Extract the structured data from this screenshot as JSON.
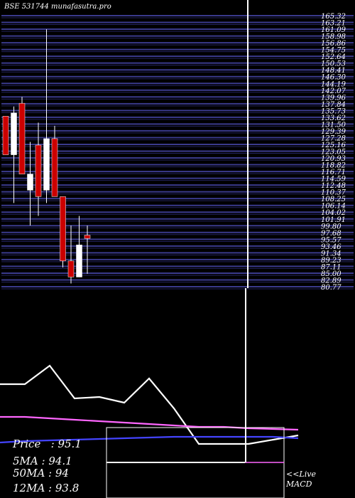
{
  "header": {
    "symbol": "BSE 531744",
    "site": "munafasutra.pro"
  },
  "price_labels": [
    "165.32",
    "163.21",
    "161.09",
    "158.98",
    "156.86",
    "154.75",
    "152.64",
    "150.53",
    "148.41",
    "146.30",
    "144.19",
    "142.07",
    "139.96",
    "137.84",
    "135.73",
    "133.62",
    "131.50",
    "129.39",
    "127.28",
    "125.16",
    "123.05",
    "120.93",
    "118.82",
    "116.71",
    "114.59",
    "112.48",
    "110.37",
    "108.25",
    "106.14",
    "104.02",
    "101.91",
    "99.80",
    "97.68",
    "95.57",
    "93.46",
    "91.34",
    "89.23",
    "87.11",
    "85.00",
    "82.89",
    "80.77"
  ],
  "chart_data": [
    {
      "type": "candlestick",
      "ylim": [
        80.0,
        166.0
      ],
      "candles": [
        {
          "open": 133.0,
          "close": 121.0,
          "high": 133.0,
          "low": 121.0,
          "color": "#cc0000"
        },
        {
          "open": 121.0,
          "close": 134.0,
          "high": 136.0,
          "low": 106.0,
          "color": "#ffffff"
        },
        {
          "open": 137.0,
          "close": 115.0,
          "high": 139.0,
          "low": 115.0,
          "color": "#cc0000"
        },
        {
          "open": 110.0,
          "close": 115.0,
          "high": 125.0,
          "low": 99.0,
          "color": "#ffffff"
        },
        {
          "open": 124.0,
          "close": 108.0,
          "high": 131.0,
          "low": 102.0,
          "color": "#cc0000"
        },
        {
          "open": 110.0,
          "close": 126.0,
          "high": 160.0,
          "low": 106.0,
          "color": "#ffffff"
        },
        {
          "open": 126.0,
          "close": 108.0,
          "high": 130.0,
          "low": 108.0,
          "color": "#cc0000"
        },
        {
          "open": 108.0,
          "close": 88.0,
          "high": 108.0,
          "low": 86.0,
          "color": "#cc0000"
        },
        {
          "open": 88.0,
          "close": 83.0,
          "high": 99.0,
          "low": 81.0,
          "color": "#cc0000"
        },
        {
          "open": 83.0,
          "close": 93.0,
          "high": 102.0,
          "low": 83.0,
          "color": "#ffffff"
        },
        {
          "open": 96.0,
          "close": 95.0,
          "high": 99.0,
          "low": 84.0,
          "color": "#cc0000"
        }
      ]
    },
    {
      "type": "line",
      "title": "MACD",
      "series": [
        {
          "color": "#ffffff",
          "values": [
            30.0,
            30.0,
            43.0,
            20.0,
            21.0,
            17.0,
            34.0,
            13.0,
            -12.0,
            -12.0,
            -12.0,
            -9.0,
            -6.0
          ]
        },
        {
          "color": "#ff66ff",
          "values": [
            7.0,
            7.0,
            6.0,
            5.0,
            4.0,
            3.0,
            2.0,
            1.0,
            0.0,
            0.0,
            -1.0,
            -1.5,
            -2.0
          ]
        },
        {
          "color": "#4444ff",
          "values": [
            -11.0,
            -10.0,
            -9.5,
            -9.0,
            -8.5,
            -8.0,
            -7.5,
            -7.0,
            -7.0,
            -7.0,
            -7.0,
            -7.0,
            -8.0
          ]
        }
      ]
    }
  ],
  "stats": {
    "price": "Price   : 95.1",
    "ma5": "5MA : 94.1",
    "ma50": "50MA : 94",
    "ma12": "12MA : 93.8"
  },
  "live": {
    "line1": "<<Live",
    "line2": "MACD"
  }
}
